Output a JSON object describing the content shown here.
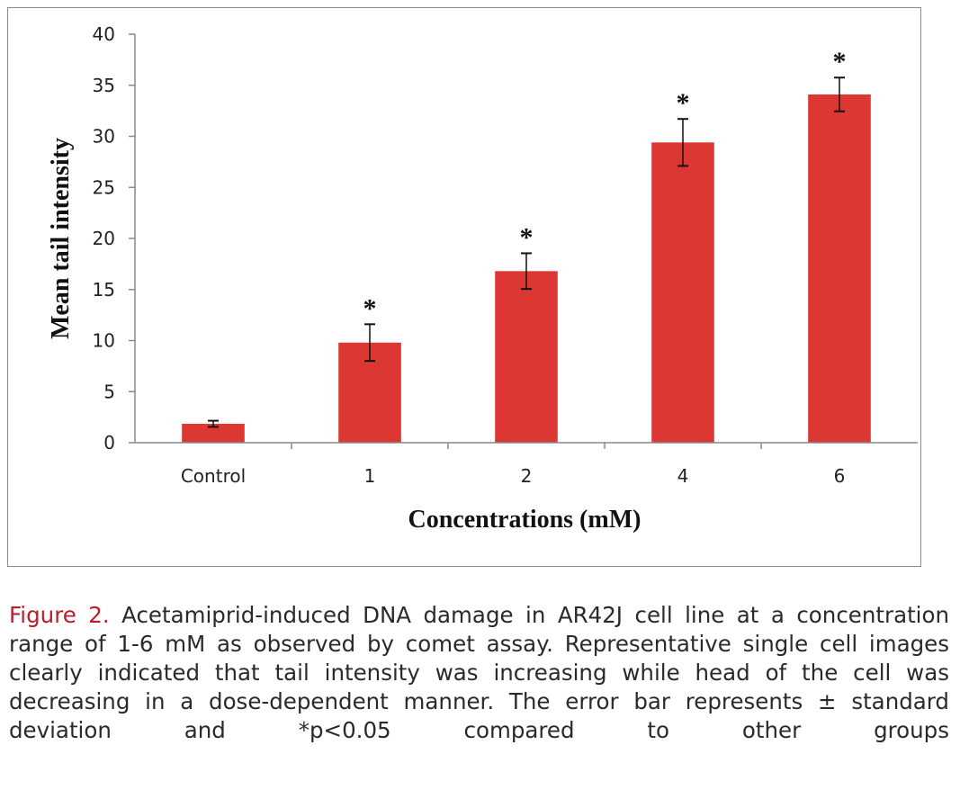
{
  "chart_data": {
    "type": "bar",
    "categories": [
      "Control",
      "1",
      "2",
      "4",
      "6"
    ],
    "values": [
      1.85,
      9.8,
      16.8,
      29.4,
      34.1
    ],
    "error": [
      0.3,
      1.8,
      1.75,
      2.3,
      1.65
    ],
    "significance": [
      "",
      "*",
      "*",
      "*",
      "*"
    ],
    "xlabel": "Concentrations (mM)",
    "ylabel": "Mean tail intensity",
    "ylim": [
      0,
      40
    ],
    "yticks": [
      0,
      5,
      10,
      15,
      20,
      25,
      30,
      35,
      40
    ],
    "grid": false,
    "bar_color": "#dc3733"
  },
  "caption": {
    "label": "Figure 2.",
    "text": " Acetamiprid-induced DNA damage in AR42J cell line at a concentration range of 1-6 mM as observed by comet assay. Representative single cell images clearly indicated that tail intensity was increasing while head of the cell was decreasing in a dose-dependent manner. The error bar represents ± standard deviation and *p<0.05 compared to other groups"
  }
}
